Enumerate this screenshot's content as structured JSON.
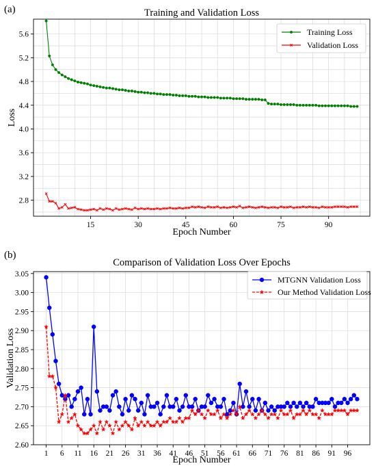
{
  "chart_data": [
    {
      "panel_label": "(a)",
      "type": "line",
      "title": "Training and Validation Loss",
      "xlabel": "Epoch Number",
      "ylabel": "Loss",
      "xlim": [
        -3,
        103
      ],
      "ylim": [
        2.53,
        5.85
      ],
      "xticks": [
        15,
        30,
        45,
        60,
        75,
        90
      ],
      "yticks": [
        2.8,
        3.2,
        3.6,
        4.0,
        4.4,
        4.8,
        5.2,
        5.6
      ],
      "grid": true,
      "legend_position": "top-right",
      "series": [
        {
          "name": "Training Loss",
          "color": "#008000",
          "marker": "circle",
          "x": [
            1,
            2,
            3,
            4,
            5,
            6,
            7,
            8,
            9,
            10,
            11,
            12,
            13,
            14,
            15,
            16,
            17,
            18,
            19,
            20,
            21,
            22,
            23,
            24,
            25,
            26,
            27,
            28,
            29,
            30,
            31,
            32,
            33,
            34,
            35,
            36,
            37,
            38,
            39,
            40,
            41,
            42,
            43,
            44,
            45,
            46,
            47,
            48,
            49,
            50,
            51,
            52,
            53,
            54,
            55,
            56,
            57,
            58,
            59,
            60,
            61,
            62,
            63,
            64,
            65,
            66,
            67,
            68,
            69,
            70,
            71,
            72,
            73,
            74,
            75,
            76,
            77,
            78,
            79,
            80,
            81,
            82,
            83,
            84,
            85,
            86,
            87,
            88,
            89,
            90,
            91,
            92,
            93,
            94,
            95,
            96,
            97,
            98,
            99
          ],
          "values": [
            5.82,
            5.23,
            5.08,
            5.0,
            4.95,
            4.91,
            4.88,
            4.85,
            4.83,
            4.81,
            4.79,
            4.78,
            4.77,
            4.76,
            4.74,
            4.73,
            4.72,
            4.71,
            4.7,
            4.69,
            4.69,
            4.68,
            4.67,
            4.66,
            4.66,
            4.65,
            4.64,
            4.64,
            4.63,
            4.62,
            4.62,
            4.61,
            4.61,
            4.6,
            4.6,
            4.59,
            4.59,
            4.58,
            4.58,
            4.58,
            4.57,
            4.57,
            4.56,
            4.56,
            4.56,
            4.55,
            4.55,
            4.55,
            4.54,
            4.54,
            4.54,
            4.53,
            4.53,
            4.53,
            4.53,
            4.52,
            4.52,
            4.52,
            4.52,
            4.51,
            4.51,
            4.51,
            4.51,
            4.5,
            4.5,
            4.5,
            4.5,
            4.5,
            4.49,
            4.49,
            4.43,
            4.42,
            4.42,
            4.42,
            4.41,
            4.41,
            4.41,
            4.41,
            4.41,
            4.4,
            4.4,
            4.4,
            4.4,
            4.4,
            4.4,
            4.4,
            4.39,
            4.39,
            4.39,
            4.39,
            4.39,
            4.39,
            4.39,
            4.39,
            4.39,
            4.39,
            4.38,
            4.38,
            4.38
          ]
        },
        {
          "name": "Validation Loss",
          "color": "#ff0000",
          "marker": "x",
          "x": [
            1,
            2,
            3,
            4,
            5,
            6,
            7,
            8,
            9,
            10,
            11,
            12,
            13,
            14,
            15,
            16,
            17,
            18,
            19,
            20,
            21,
            22,
            23,
            24,
            25,
            26,
            27,
            28,
            29,
            30,
            31,
            32,
            33,
            34,
            35,
            36,
            37,
            38,
            39,
            40,
            41,
            42,
            43,
            44,
            45,
            46,
            47,
            48,
            49,
            50,
            51,
            52,
            53,
            54,
            55,
            56,
            57,
            58,
            59,
            60,
            61,
            62,
            63,
            64,
            65,
            66,
            67,
            68,
            69,
            70,
            71,
            72,
            73,
            74,
            75,
            76,
            77,
            78,
            79,
            80,
            81,
            82,
            83,
            84,
            85,
            86,
            87,
            88,
            89,
            90,
            91,
            92,
            93,
            94,
            95,
            96,
            97,
            98,
            99
          ],
          "values": [
            2.91,
            2.78,
            2.78,
            2.75,
            2.66,
            2.68,
            2.73,
            2.66,
            2.67,
            2.68,
            2.65,
            2.64,
            2.63,
            2.63,
            2.64,
            2.65,
            2.63,
            2.66,
            2.64,
            2.66,
            2.65,
            2.63,
            2.66,
            2.64,
            2.65,
            2.66,
            2.65,
            2.64,
            2.67,
            2.65,
            2.66,
            2.65,
            2.66,
            2.65,
            2.65,
            2.66,
            2.65,
            2.66,
            2.66,
            2.67,
            2.66,
            2.66,
            2.67,
            2.66,
            2.67,
            2.67,
            2.69,
            2.68,
            2.69,
            2.68,
            2.67,
            2.69,
            2.68,
            2.68,
            2.69,
            2.67,
            2.68,
            2.67,
            2.68,
            2.69,
            2.68,
            2.7,
            2.67,
            2.68,
            2.69,
            2.68,
            2.67,
            2.68,
            2.69,
            2.68,
            2.67,
            2.68,
            2.68,
            2.67,
            2.69,
            2.68,
            2.68,
            2.69,
            2.67,
            2.68,
            2.68,
            2.69,
            2.68,
            2.69,
            2.68,
            2.68,
            2.67,
            2.69,
            2.68,
            2.68,
            2.68,
            2.69,
            2.69,
            2.69,
            2.69,
            2.68,
            2.69,
            2.69,
            2.69
          ]
        }
      ]
    },
    {
      "panel_label": "(b)",
      "type": "line",
      "title": "Comparison of Validation Loss Over Epochs",
      "xlabel": "Epoch Number",
      "ylabel": "Validation Loss",
      "xlim": [
        -3,
        103
      ],
      "ylim": [
        2.6,
        3.055
      ],
      "xticks": [
        1,
        6,
        11,
        16,
        21,
        26,
        31,
        36,
        41,
        46,
        51,
        56,
        61,
        66,
        71,
        76,
        81,
        86,
        91,
        96
      ],
      "yticks": [
        2.6,
        2.65,
        2.7,
        2.75,
        2.8,
        2.85,
        2.9,
        2.95,
        3.0,
        3.05
      ],
      "ytick_labels": [
        "2.60",
        "2.65",
        "2.70",
        "2.75",
        "2.80",
        "2.85",
        "2.90",
        "2.95",
        "3.00",
        "3.05"
      ],
      "grid": true,
      "legend_position": "top-right",
      "series": [
        {
          "name": "MTGNN Validation Loss",
          "color": "#0000ff",
          "marker": "circle",
          "x": [
            1,
            2,
            3,
            4,
            5,
            6,
            7,
            8,
            9,
            10,
            11,
            12,
            13,
            14,
            15,
            16,
            17,
            18,
            19,
            20,
            21,
            22,
            23,
            24,
            25,
            26,
            27,
            28,
            29,
            30,
            31,
            32,
            33,
            34,
            35,
            36,
            37,
            38,
            39,
            40,
            41,
            42,
            43,
            44,
            45,
            46,
            47,
            48,
            49,
            50,
            51,
            52,
            53,
            54,
            55,
            56,
            57,
            58,
            59,
            60,
            61,
            62,
            63,
            64,
            65,
            66,
            67,
            68,
            69,
            70,
            71,
            72,
            73,
            74,
            75,
            76,
            77,
            78,
            79,
            80,
            81,
            82,
            83,
            84,
            85,
            86,
            87,
            88,
            89,
            90,
            91,
            92,
            93,
            94,
            95,
            96,
            97,
            98,
            99
          ],
          "values": [
            3.04,
            2.96,
            2.89,
            2.82,
            2.76,
            2.73,
            2.72,
            2.73,
            2.7,
            2.72,
            2.74,
            2.75,
            2.68,
            2.72,
            2.68,
            2.91,
            2.74,
            2.69,
            2.7,
            2.7,
            2.69,
            2.73,
            2.74,
            2.7,
            2.68,
            2.72,
            2.69,
            2.73,
            2.72,
            2.69,
            2.71,
            2.68,
            2.73,
            2.7,
            2.7,
            2.71,
            2.68,
            2.7,
            2.73,
            2.7,
            2.7,
            2.72,
            2.69,
            2.7,
            2.73,
            2.7,
            2.7,
            2.72,
            2.69,
            2.7,
            2.7,
            2.73,
            2.71,
            2.72,
            2.7,
            2.7,
            2.72,
            2.68,
            2.69,
            2.71,
            2.68,
            2.76,
            2.7,
            2.74,
            2.7,
            2.72,
            2.69,
            2.72,
            2.69,
            2.71,
            2.69,
            2.7,
            2.69,
            2.7,
            2.7,
            2.7,
            2.71,
            2.7,
            2.71,
            2.7,
            2.71,
            2.7,
            2.71,
            2.7,
            2.7,
            2.72,
            2.71,
            2.71,
            2.71,
            2.71,
            2.72,
            2.7,
            2.71,
            2.71,
            2.72,
            2.71,
            2.72,
            2.73,
            2.72
          ]
        },
        {
          "name": "Our Method Validation Loss",
          "color": "#ff0000",
          "marker": "star",
          "x": [
            1,
            2,
            3,
            4,
            5,
            6,
            7,
            8,
            9,
            10,
            11,
            12,
            13,
            14,
            15,
            16,
            17,
            18,
            19,
            20,
            21,
            22,
            23,
            24,
            25,
            26,
            27,
            28,
            29,
            30,
            31,
            32,
            33,
            34,
            35,
            36,
            37,
            38,
            39,
            40,
            41,
            42,
            43,
            44,
            45,
            46,
            47,
            48,
            49,
            50,
            51,
            52,
            53,
            54,
            55,
            56,
            57,
            58,
            59,
            60,
            61,
            62,
            63,
            64,
            65,
            66,
            67,
            68,
            69,
            70,
            71,
            72,
            73,
            74,
            75,
            76,
            77,
            78,
            79,
            80,
            81,
            82,
            83,
            84,
            85,
            86,
            87,
            88,
            89,
            90,
            91,
            92,
            93,
            94,
            95,
            96,
            97,
            98,
            99
          ],
          "values": [
            2.91,
            2.78,
            2.78,
            2.75,
            2.66,
            2.68,
            2.73,
            2.66,
            2.67,
            2.68,
            2.65,
            2.64,
            2.63,
            2.63,
            2.64,
            2.65,
            2.63,
            2.66,
            2.64,
            2.66,
            2.65,
            2.63,
            2.66,
            2.64,
            2.65,
            2.66,
            2.65,
            2.64,
            2.67,
            2.65,
            2.66,
            2.65,
            2.66,
            2.65,
            2.65,
            2.66,
            2.65,
            2.66,
            2.66,
            2.67,
            2.66,
            2.66,
            2.67,
            2.66,
            2.67,
            2.67,
            2.69,
            2.68,
            2.69,
            2.68,
            2.67,
            2.69,
            2.68,
            2.68,
            2.69,
            2.67,
            2.68,
            2.67,
            2.68,
            2.69,
            2.68,
            2.7,
            2.67,
            2.68,
            2.69,
            2.68,
            2.67,
            2.68,
            2.69,
            2.68,
            2.67,
            2.68,
            2.68,
            2.67,
            2.69,
            2.68,
            2.68,
            2.69,
            2.67,
            2.68,
            2.68,
            2.69,
            2.68,
            2.69,
            2.68,
            2.68,
            2.67,
            2.69,
            2.68,
            2.68,
            2.68,
            2.69,
            2.69,
            2.69,
            2.69,
            2.68,
            2.69,
            2.69,
            2.69
          ]
        }
      ]
    }
  ]
}
